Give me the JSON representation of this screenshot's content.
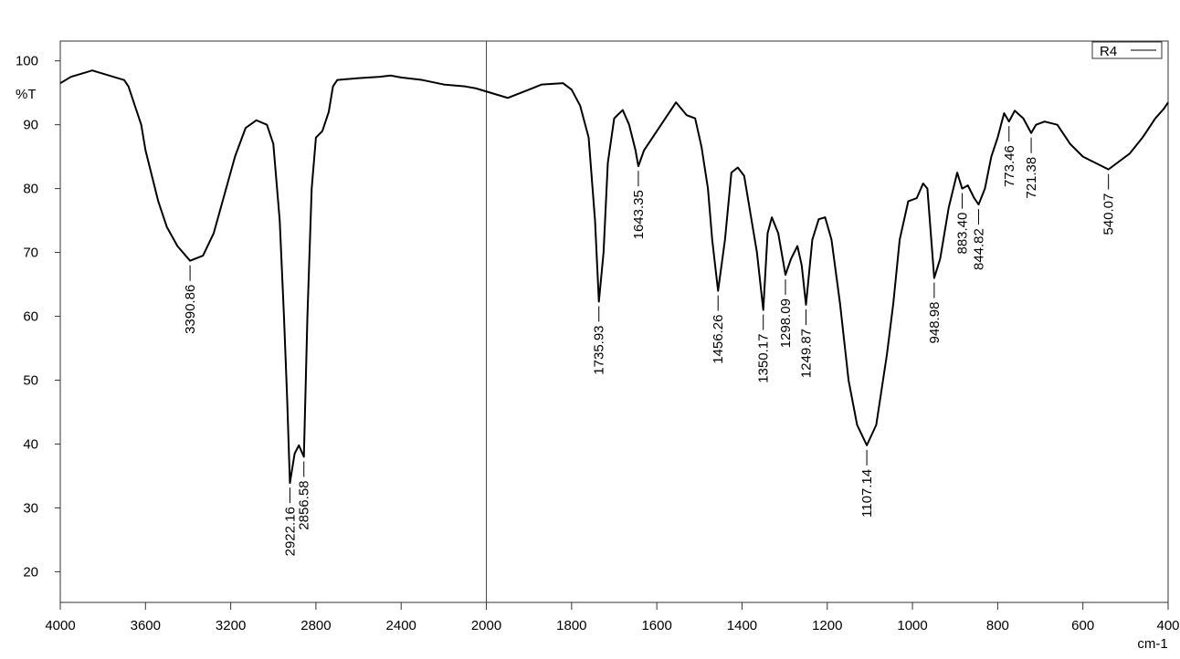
{
  "chart_data": {
    "type": "line",
    "y_label": "%T",
    "x_label": "cm-1",
    "xlim": [
      4000,
      400
    ],
    "x_break": 2000,
    "x_break_scale": 2,
    "ylim": [
      15.2,
      103.1
    ],
    "xticks": [
      4000,
      3600,
      3200,
      2800,
      2400,
      2000,
      1800,
      1600,
      1400,
      1200,
      1000,
      800,
      600,
      400
    ],
    "yticks": [
      20,
      30,
      40,
      50,
      60,
      70,
      80,
      90,
      100
    ],
    "grid": false,
    "legend": "upper right",
    "x": [
      4000,
      3950,
      3900,
      3850,
      3800,
      3750,
      3700,
      3680,
      3650,
      3620,
      3600,
      3570,
      3540,
      3500,
      3450,
      3390.86,
      3330,
      3280,
      3230,
      3180,
      3130,
      3080,
      3030,
      3000,
      2970,
      2950,
      2935,
      2922.16,
      2900,
      2880,
      2856.58,
      2840,
      2820,
      2800,
      2770,
      2740,
      2720,
      2700,
      2600,
      2500,
      2450,
      2400,
      2300,
      2200,
      2100,
      2050,
      2000,
      1950,
      1900,
      1870,
      1820,
      1800,
      1780,
      1760,
      1745,
      1735.93,
      1725,
      1715,
      1700,
      1680,
      1665,
      1650,
      1643.35,
      1630,
      1600,
      1570,
      1555,
      1530,
      1510,
      1495,
      1480,
      1470,
      1456.26,
      1440,
      1425,
      1410,
      1395,
      1380,
      1365,
      1350.17,
      1340,
      1330,
      1315,
      1298.09,
      1285,
      1270,
      1260,
      1249.87,
      1235,
      1220,
      1205,
      1190,
      1170,
      1150,
      1130,
      1107.14,
      1085,
      1060,
      1045,
      1030,
      1010,
      990,
      975,
      965,
      948.98,
      935,
      915,
      895,
      883.4,
      870,
      855,
      844.82,
      830,
      815,
      800,
      785,
      773.46,
      760,
      740,
      721.38,
      710,
      690,
      660,
      630,
      600,
      570,
      540.07,
      520,
      490,
      460,
      430,
      410,
      400
    ],
    "series": [
      {
        "name": "R4",
        "color": "#000000",
        "values": [
          96.5,
          97.5,
          98,
          98.5,
          98,
          97.5,
          97,
          96,
          93,
          90,
          86,
          82,
          78,
          74,
          71,
          68.7,
          69.5,
          73,
          79,
          85,
          89.5,
          90.7,
          90,
          87,
          75,
          60,
          47,
          33.9,
          38.5,
          39.8,
          38,
          60,
          80,
          88,
          89,
          92,
          96,
          97,
          97.3,
          97.5,
          97.7,
          97.4,
          97,
          96.3,
          96,
          95.7,
          95.2,
          94.2,
          95.5,
          96.3,
          96.5,
          95.5,
          93,
          88,
          75,
          62.3,
          70,
          84,
          91,
          92.3,
          90,
          86,
          83.5,
          86,
          89,
          92,
          93.5,
          91.5,
          91,
          86.5,
          80,
          72,
          64,
          72,
          82.5,
          83.3,
          82,
          76,
          70,
          61,
          73,
          75.5,
          73,
          66.5,
          69,
          71,
          68,
          61.8,
          72,
          75.2,
          75.5,
          72,
          62,
          50,
          43,
          39.8,
          43,
          54,
          62,
          72,
          78,
          78.5,
          80.8,
          80,
          66,
          69,
          77,
          82.5,
          80,
          80.5,
          78.5,
          77.5,
          80,
          85,
          88,
          91.8,
          90.5,
          92.2,
          91,
          88.7,
          90,
          90.5,
          90,
          87,
          85,
          84,
          83,
          84,
          85.5,
          88,
          91,
          92.5,
          93.5
        ]
      }
    ],
    "peaks": {
      "x": [
        3390.86,
        2922.16,
        2856.58,
        1735.93,
        1643.35,
        1456.26,
        1350.17,
        1298.09,
        1249.87,
        1107.14,
        948.98,
        883.4,
        844.82,
        773.46,
        721.38,
        540.07
      ],
      "y": [
        68.7,
        33.9,
        38,
        62.3,
        83.5,
        64,
        61,
        66.5,
        61.8,
        39.8,
        66,
        80,
        77.5,
        90.5,
        88.7,
        83
      ],
      "labels": [
        "3390.86",
        "2922.16",
        "2856.58",
        "1735.93",
        "1643.35",
        "1456.26",
        "1350.17",
        "1298.09",
        "1249.87",
        "1107.14",
        "948.98",
        "883.40",
        "844.82",
        "773.46",
        "721.38",
        "540.07"
      ]
    }
  }
}
